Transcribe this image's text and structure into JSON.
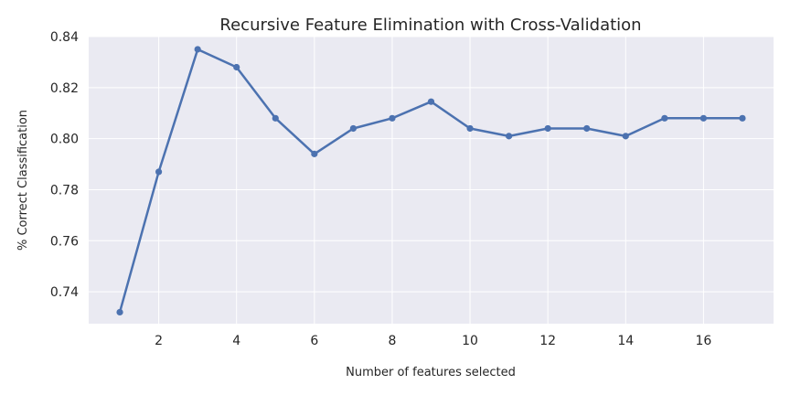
{
  "chart_data": {
    "type": "line",
    "title": "Recursive Feature Elimination with Cross-Validation",
    "xlabel": "Number of features selected",
    "ylabel": "% Correct Classification",
    "x": [
      1,
      2,
      3,
      4,
      5,
      6,
      7,
      8,
      9,
      10,
      11,
      12,
      13,
      14,
      15,
      16,
      17
    ],
    "series": [
      {
        "values": [
          0.732,
          0.787,
          0.835,
          0.828,
          0.808,
          0.794,
          0.804,
          0.808,
          0.8145,
          0.804,
          0.801,
          0.804,
          0.804,
          0.801,
          0.808,
          0.808,
          0.808
        ],
        "color": "#4c72b0"
      }
    ],
    "xlim": [
      0.2,
      17.8
    ],
    "ylim": [
      0.7275,
      0.84
    ],
    "xticks": [
      2,
      4,
      6,
      8,
      10,
      12,
      14,
      16
    ],
    "yticks": [
      0.74,
      0.76,
      0.78,
      0.8,
      0.82,
      0.84
    ],
    "xtick_labels": [
      "2",
      "4",
      "6",
      "8",
      "10",
      "12",
      "14",
      "16"
    ],
    "ytick_labels": [
      "0.74",
      "0.76",
      "0.78",
      "0.80",
      "0.82",
      "0.84"
    ],
    "grid": true,
    "background": "#eaeaf2"
  }
}
